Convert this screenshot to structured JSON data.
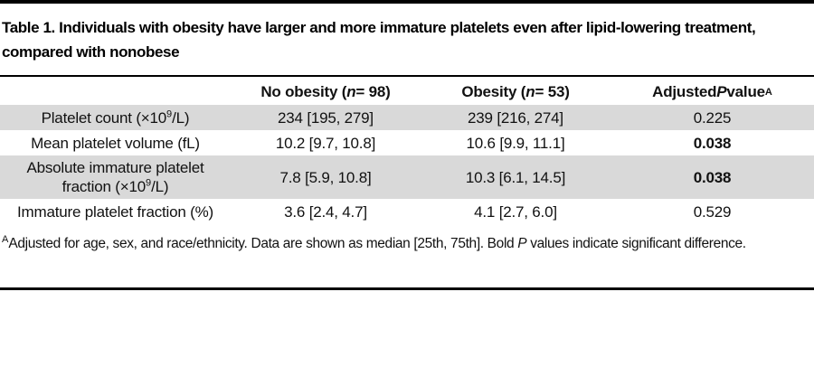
{
  "title": "Table 1. Individuals with obesity have larger and more immature platelets even after lipid-lowering treatment, compared with nonobese",
  "header": {
    "col1": "",
    "no_obesity": {
      "pre": "No obesity (",
      "italic": "n",
      "post": " = 98)"
    },
    "obesity": {
      "pre": "Obesity (",
      "italic": "n",
      "post": " = 53)"
    },
    "p_value": {
      "pre": "Adjusted ",
      "italic": "P",
      "post": " value",
      "sup": "A"
    }
  },
  "rows": [
    {
      "label": {
        "pre": "Platelet count (×10",
        "sup": "9",
        "post": "/L)"
      },
      "no_obesity": "234 [195, 279]",
      "obesity": "239 [216, 274]",
      "p_value": "0.225",
      "p_bold": false,
      "shaded": true
    },
    {
      "label": {
        "pre": "Mean platelet volume (fL)",
        "sup": "",
        "post": ""
      },
      "no_obesity": "10.2 [9.7, 10.8]",
      "obesity": "10.6 [9.9, 11.1]",
      "p_value": "0.038",
      "p_bold": true,
      "shaded": false
    },
    {
      "label": {
        "pre": "Absolute immature platelet fraction (×10",
        "sup": "9",
        "post": "/L)"
      },
      "no_obesity": "7.8 [5.9, 10.8]",
      "obesity": "10.3 [6.1, 14.5]",
      "p_value": "0.038",
      "p_bold": true,
      "shaded": true
    },
    {
      "label": {
        "pre": "Immature platelet fraction (%)",
        "sup": "",
        "post": ""
      },
      "no_obesity": "3.6 [2.4, 4.7]",
      "obesity": "4.1 [2.7, 6.0]",
      "p_value": "0.529",
      "p_bold": false,
      "shaded": false
    }
  ],
  "footnote": {
    "sup": "A",
    "pre": "Adjusted for age, sex, and race/ethnicity. Data are shown as median [25th, 75th]. Bold ",
    "italic": "P",
    "post": " values indicate significant difference."
  },
  "colors": {
    "shaded_row": "#d9d9d9",
    "rule": "#000000",
    "text": "#111111"
  }
}
